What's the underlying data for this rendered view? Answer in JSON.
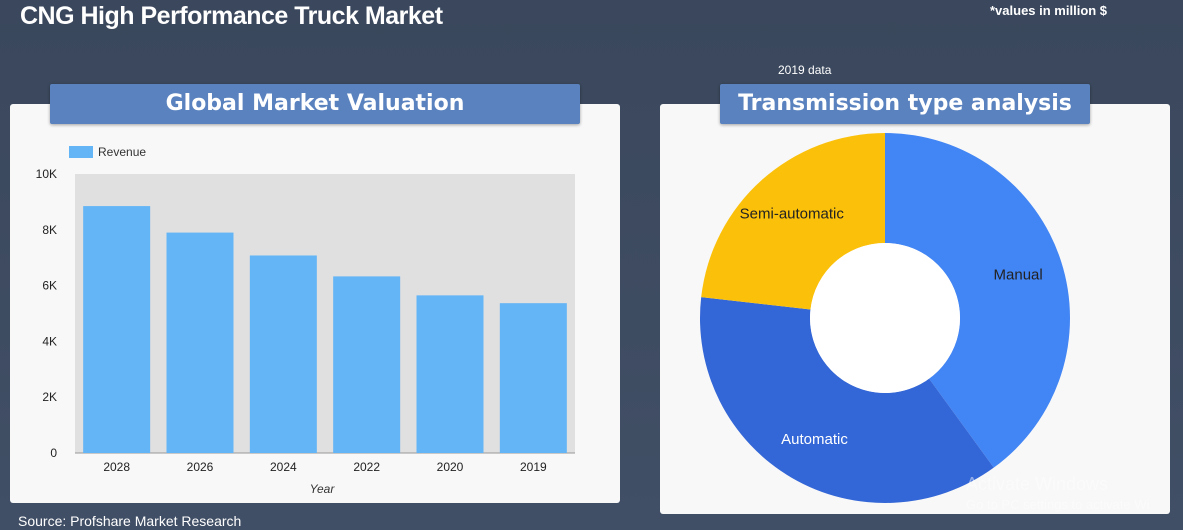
{
  "header": {
    "title": "CNG High Performance Truck Market",
    "units_note": "*values in million $",
    "data_year": "2019 data"
  },
  "footer": {
    "source": "Source: Profshare Market Research"
  },
  "watermark": {
    "line1": "Activate Windows",
    "line2": "Go to PC settings to activate Wi"
  },
  "colors": {
    "bar": "#64b5f6",
    "plot_bg": "#e0e0e0",
    "manual": "#4285f4",
    "automatic": "#3366d6",
    "semi_automatic": "#fbc10a"
  },
  "chart_data": [
    {
      "type": "bar",
      "title": "Global Market Valuation",
      "categories": [
        "2028",
        "2026",
        "2024",
        "2022",
        "2020",
        "2019"
      ],
      "series": [
        {
          "name": "Revenue",
          "values": [
            8850,
            7900,
            7080,
            6330,
            5650,
            5370
          ]
        }
      ],
      "xlabel": "Year",
      "ylabel": "",
      "ylim": [
        0,
        10000
      ],
      "yticks": [
        "0",
        "2K",
        "4K",
        "6K",
        "8K",
        "10K"
      ],
      "legend": "top-left",
      "grid": false
    },
    {
      "type": "pie",
      "title": "Transmission type analysis",
      "donut": true,
      "labels": [
        "Manual",
        "Automatic",
        "Semi-automatic"
      ],
      "values": [
        40.0,
        36.8,
        23.2
      ],
      "legend": "none"
    }
  ]
}
